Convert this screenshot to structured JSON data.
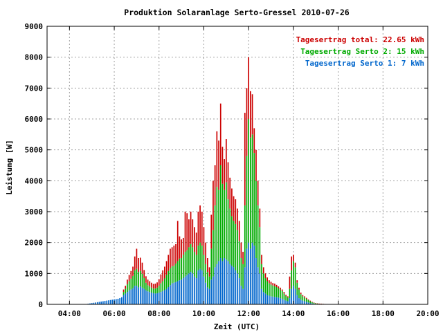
{
  "chart_data": {
    "type": "bar",
    "stacked": true,
    "title": "Produktion Solaranlage Serto-Gressel 2010-07-26",
    "xlabel": "Zeit (UTC)",
    "ylabel": "Leistung [W]",
    "ylim": [
      0,
      9000
    ],
    "yticks": [
      0,
      1000,
      2000,
      3000,
      4000,
      5000,
      6000,
      7000,
      8000,
      9000
    ],
    "xlim_hours": [
      3.0,
      20.0
    ],
    "xticks": [
      {
        "hour": 4,
        "label": "04:00"
      },
      {
        "hour": 6,
        "label": "06:00"
      },
      {
        "hour": 8,
        "label": "08:00"
      },
      {
        "hour": 10,
        "label": "10:00"
      },
      {
        "hour": 12,
        "label": "12:00"
      },
      {
        "hour": 14,
        "label": "14:00"
      },
      {
        "hour": 16,
        "label": "16:00"
      },
      {
        "hour": 18,
        "label": "18:00"
      },
      {
        "hour": 20,
        "label": "20:00"
      }
    ],
    "grid": true,
    "legend_position": "top-right",
    "legend": [
      {
        "text": "Tagesertrag total: 22.65 kWh",
        "color": "#cc0000"
      },
      {
        "text": "Tagesertrag Serto 2: 15 kWh",
        "color": "#00aa00"
      },
      {
        "text": "Tagesertrag Serto 1: 7 kWh",
        "color": "#0066cc"
      }
    ],
    "colors": {
      "total": "#cc0000",
      "serto2": "#00aa00",
      "serto1": "#0066cc"
    },
    "interval_minutes": 5,
    "x_start_time": "04:50",
    "series": [
      {
        "name": "Serto 1",
        "color": "#0066cc",
        "values": [
          20,
          30,
          40,
          50,
          60,
          70,
          80,
          90,
          100,
          110,
          120,
          130,
          140,
          150,
          160,
          170,
          180,
          200,
          230,
          300,
          350,
          400,
          450,
          480,
          520,
          600,
          600,
          550,
          580,
          540,
          500,
          450,
          420,
          400,
          380,
          360,
          350,
          360,
          380,
          400,
          430,
          460,
          500,
          560,
          620,
          680,
          700,
          720,
          750,
          780,
          800,
          850,
          900,
          950,
          1000,
          1050,
          1000,
          900,
          850,
          1100,
          1150,
          1100,
          900,
          700,
          550,
          500,
          800,
          900,
          1200,
          1300,
          1400,
          1500,
          1400,
          1500,
          1450,
          1400,
          1300,
          1250,
          1200,
          1100,
          1000,
          850,
          600,
          500,
          1200,
          1800,
          2000,
          1800,
          2000,
          1900,
          1500,
          1200,
          1000,
          500,
          400,
          350,
          300,
          280,
          260,
          250,
          240,
          230,
          220,
          200,
          180,
          150,
          120,
          100,
          200,
          500,
          600,
          500,
          300,
          200,
          150,
          120,
          100,
          80,
          60,
          40,
          30,
          20,
          15,
          10,
          8,
          6,
          5,
          4,
          3,
          3,
          2,
          2,
          2,
          1
        ]
      },
      {
        "name": "Serto 2",
        "color": "#00aa00",
        "values": [
          0,
          0,
          0,
          0,
          0,
          0,
          0,
          0,
          0,
          0,
          0,
          0,
          0,
          0,
          0,
          0,
          0,
          0,
          0,
          100,
          150,
          250,
          300,
          350,
          400,
          500,
          550,
          500,
          500,
          450,
          350,
          250,
          200,
          180,
          160,
          150,
          160,
          180,
          220,
          280,
          320,
          380,
          450,
          520,
          550,
          550,
          550,
          600,
          650,
          700,
          700,
          750,
          800,
          800,
          850,
          900,
          850,
          800,
          750,
          800,
          850,
          800,
          700,
          600,
          500,
          400,
          1000,
          1500,
          2000,
          2500,
          2300,
          3000,
          2500,
          2200,
          2500,
          2000,
          1800,
          1600,
          1500,
          1500,
          1400,
          1200,
          900,
          800,
          2000,
          3000,
          4000,
          3600,
          3500,
          3000,
          2500,
          2000,
          1500,
          800,
          600,
          500,
          450,
          400,
          380,
          360,
          350,
          330,
          300,
          280,
          250,
          200,
          150,
          120,
          300,
          600,
          800,
          700,
          400,
          280,
          180,
          140,
          120,
          100,
          80,
          60,
          40,
          30,
          20,
          15,
          12,
          10,
          8,
          6,
          5,
          4,
          3,
          2,
          2,
          1
        ]
      },
      {
        "name": "Total",
        "color": "#cc0000",
        "values": [
          0,
          0,
          0,
          0,
          0,
          0,
          0,
          0,
          0,
          0,
          0,
          0,
          0,
          0,
          0,
          0,
          0,
          0,
          0,
          80,
          100,
          150,
          200,
          250,
          300,
          450,
          650,
          450,
          430,
          360,
          260,
          210,
          180,
          170,
          160,
          150,
          160,
          170,
          210,
          290,
          350,
          380,
          450,
          520,
          630,
          620,
          650,
          630,
          1300,
          720,
          600,
          550,
          1300,
          1200,
          900,
          1050,
          900,
          800,
          720,
          1100,
          1200,
          1100,
          900,
          700,
          450,
          300,
          1100,
          1600,
          1300,
          1800,
          1600,
          2000,
          1200,
          1000,
          1400,
          1200,
          1000,
          900,
          800,
          800,
          700,
          650,
          500,
          400,
          3000,
          2200,
          2000,
          1500,
          1300,
          800,
          1000,
          800,
          600,
          300,
          200,
          150,
          120,
          100,
          90,
          80,
          80,
          70,
          60,
          60,
          50,
          50,
          40,
          40,
          400,
          450,
          200,
          150,
          80,
          60,
          50,
          40,
          40,
          30,
          20,
          20,
          15,
          10,
          8,
          6,
          4,
          3,
          2,
          2,
          2,
          1,
          1,
          1,
          1,
          1
        ]
      }
    ]
  }
}
